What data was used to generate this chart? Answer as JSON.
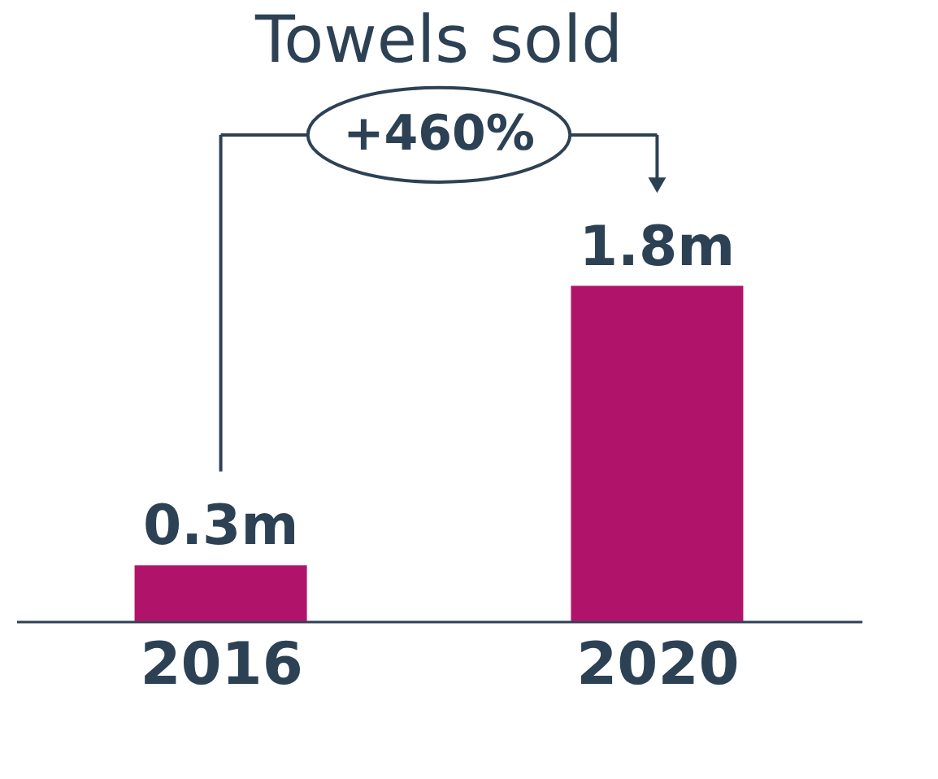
{
  "chart_data": {
    "type": "bar",
    "title": "Towels sold",
    "categories": [
      "2016",
      "2020"
    ],
    "values": [
      0.3,
      1.8
    ],
    "value_labels": [
      "0.3m",
      "1.8m"
    ],
    "color": "#b0146a",
    "annotations": [
      "+460%"
    ]
  }
}
